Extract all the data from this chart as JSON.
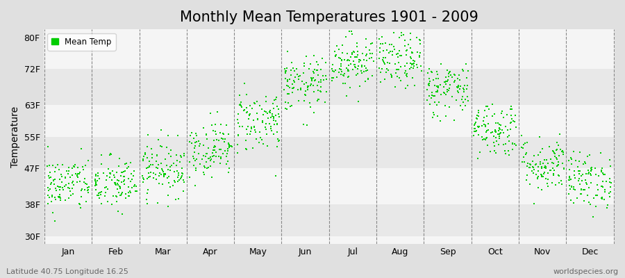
{
  "title": "Monthly Mean Temperatures 1901 - 2009",
  "ylabel": "Temperature",
  "xlabel_months": [
    "Jan",
    "Feb",
    "Mar",
    "Apr",
    "May",
    "Jun",
    "Jul",
    "Aug",
    "Sep",
    "Oct",
    "Nov",
    "Dec"
  ],
  "ytick_labels": [
    "30F",
    "38F",
    "47F",
    "55F",
    "63F",
    "72F",
    "80F"
  ],
  "ytick_values": [
    30,
    38,
    47,
    55,
    63,
    72,
    80
  ],
  "ylim": [
    28,
    82
  ],
  "dot_color": "#00cc00",
  "bg_color": "#e0e0e0",
  "plot_bg_color": "#f5f5f5",
  "band_color_dark": "#e8e8e8",
  "band_color_light": "#f5f5f5",
  "legend_label": "Mean Temp",
  "bottom_left_text": "Latitude 40.75 Longitude 16.25",
  "bottom_right_text": "worldspecies.org",
  "title_fontsize": 15,
  "axis_label_fontsize": 10,
  "tick_fontsize": 9,
  "n_years": 109,
  "monthly_means": [
    43,
    43,
    47,
    52,
    59,
    68,
    74,
    74,
    67,
    57,
    48,
    44
  ],
  "monthly_stds": [
    3.5,
    3.5,
    3.5,
    3.5,
    4,
    3.5,
    3.5,
    3.5,
    3.5,
    3.5,
    3.5,
    3.5
  ],
  "seed": 42
}
